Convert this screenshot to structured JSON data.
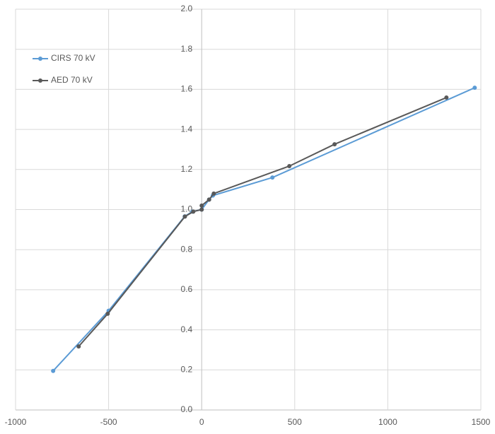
{
  "chart_data": {
    "type": "line",
    "series": [
      {
        "name": "CIRS 70 kV",
        "color": "#5b9bd5",
        "x": [
          -798,
          -500,
          -91,
          -50,
          0,
          40,
          60,
          380,
          1467
        ],
        "values": [
          0.195,
          0.495,
          0.966,
          0.99,
          1.0,
          1.05,
          1.07,
          1.16,
          1.608
        ]
      },
      {
        "name": "AED 70 kV",
        "color": "#595959",
        "x": [
          -661,
          -505,
          -90,
          -45,
          0,
          0,
          40,
          65,
          471,
          714,
          1315
        ],
        "values": [
          0.317,
          0.48,
          0.965,
          0.99,
          1.0,
          1.02,
          1.05,
          1.08,
          1.217,
          1.326,
          1.559
        ]
      }
    ],
    "xlim": [
      -1000,
      1500
    ],
    "xticks": [
      -1000,
      -500,
      0,
      500,
      1000,
      1500
    ],
    "ylim": [
      0,
      2
    ],
    "yticks": [
      {
        "value": 0,
        "label": "0.0"
      },
      {
        "value": 0.2,
        "label": "0.2"
      },
      {
        "value": 0.4,
        "label": "0.4"
      },
      {
        "value": 0.6,
        "label": "0.6"
      },
      {
        "value": 0.8,
        "label": "0.8"
      },
      {
        "value": 1,
        "label": "1.0"
      },
      {
        "value": 1.2,
        "label": "1.2"
      },
      {
        "value": 1.4,
        "label": "1.4"
      },
      {
        "value": 1.6,
        "label": "1.6"
      },
      {
        "value": 1.8,
        "label": "1.8"
      },
      {
        "value": 2,
        "label": "2.0"
      }
    ],
    "grid": true,
    "legend": "top-left"
  }
}
